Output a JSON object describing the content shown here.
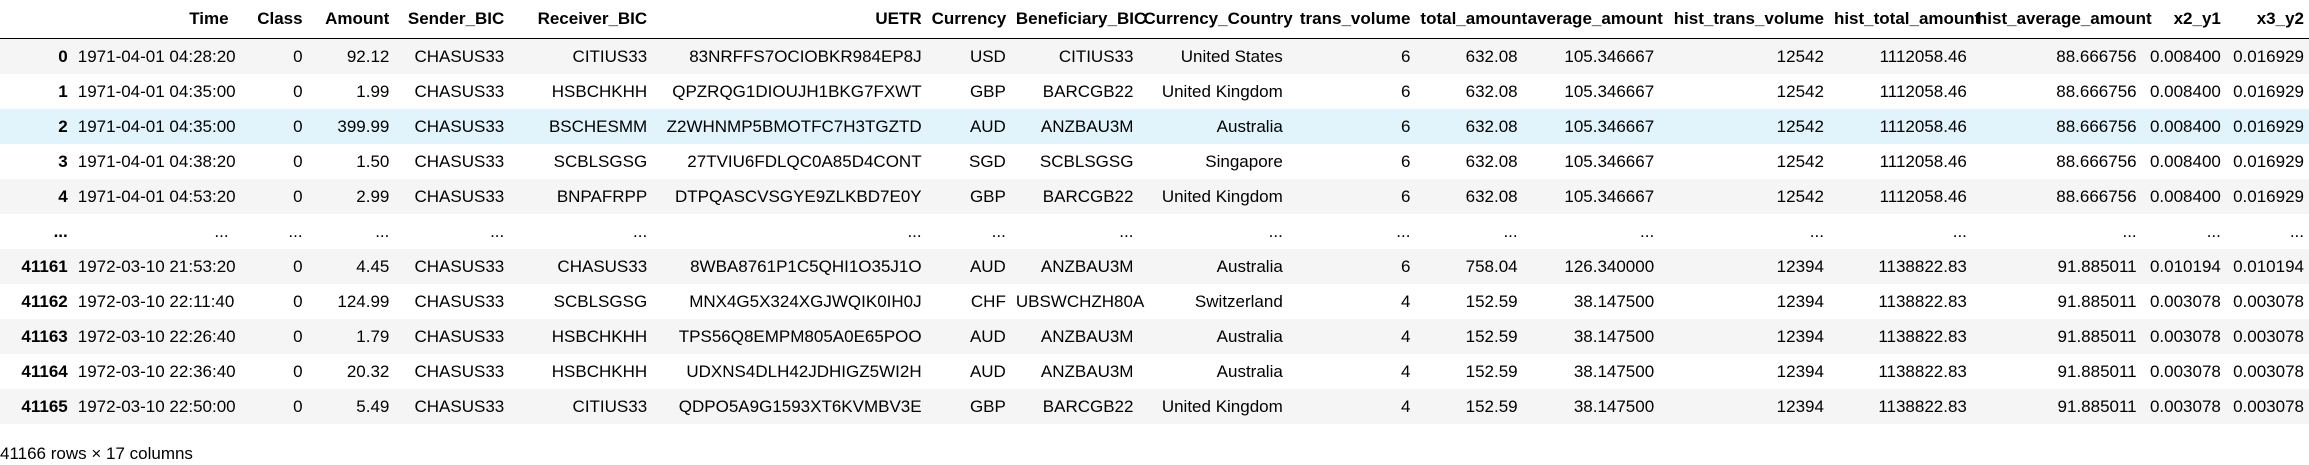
{
  "table": {
    "index_header": "",
    "columns": [
      "Time",
      "Class",
      "Amount",
      "Sender_BIC",
      "Receiver_BIC",
      "UETR",
      "Currency",
      "Beneficiary_BIC",
      "Currency_Country",
      "trans_volume",
      "total_amount",
      "average_amount",
      "hist_trans_volume",
      "hist_total_amount",
      "hist_average_amount",
      "x2_y1",
      "x3_y2"
    ],
    "rows": [
      {
        "index": "0",
        "cells": [
          "1971-04-01 04:28:20",
          "0",
          "92.12",
          "CHASUS33",
          "CITIUS33",
          "83NRFFS7OCIOBKR984EP8J",
          "USD",
          "CITIUS33",
          "United States",
          "6",
          "632.08",
          "105.346667",
          "12542",
          "1112058.46",
          "88.666756",
          "0.008400",
          "0.016929"
        ]
      },
      {
        "index": "1",
        "cells": [
          "1971-04-01 04:35:00",
          "0",
          "1.99",
          "CHASUS33",
          "HSBCHKHH",
          "QPZRQG1DIOUJH1BKG7FXWT",
          "GBP",
          "BARCGB22",
          "United Kingdom",
          "6",
          "632.08",
          "105.346667",
          "12542",
          "1112058.46",
          "88.666756",
          "0.008400",
          "0.016929"
        ]
      },
      {
        "index": "2",
        "cells": [
          "1971-04-01 04:35:00",
          "0",
          "399.99",
          "CHASUS33",
          "BSCHESMM",
          "Z2WHNMP5BMOTFC7H3TGZTD",
          "AUD",
          "ANZBAU3M",
          "Australia",
          "6",
          "632.08",
          "105.346667",
          "12542",
          "1112058.46",
          "88.666756",
          "0.008400",
          "0.016929"
        ]
      },
      {
        "index": "3",
        "cells": [
          "1971-04-01 04:38:20",
          "0",
          "1.50",
          "CHASUS33",
          "SCBLSGSG",
          "27TVIU6FDLQC0A85D4CONT",
          "SGD",
          "SCBLSGSG",
          "Singapore",
          "6",
          "632.08",
          "105.346667",
          "12542",
          "1112058.46",
          "88.666756",
          "0.008400",
          "0.016929"
        ]
      },
      {
        "index": "4",
        "cells": [
          "1971-04-01 04:53:20",
          "0",
          "2.99",
          "CHASUS33",
          "BNPAFRPP",
          "DTPQASCVSGYE9ZLKBD7E0Y",
          "GBP",
          "BARCGB22",
          "United Kingdom",
          "6",
          "632.08",
          "105.346667",
          "12542",
          "1112058.46",
          "88.666756",
          "0.008400",
          "0.016929"
        ]
      },
      {
        "index": "...",
        "cells": [
          "...",
          "...",
          "...",
          "...",
          "...",
          "...",
          "...",
          "...",
          "...",
          "...",
          "...",
          "...",
          "...",
          "...",
          "...",
          "...",
          "..."
        ]
      },
      {
        "index": "41161",
        "cells": [
          "1972-03-10 21:53:20",
          "0",
          "4.45",
          "CHASUS33",
          "CHASUS33",
          "8WBA8761P1C5QHI1O35J1O",
          "AUD",
          "ANZBAU3M",
          "Australia",
          "6",
          "758.04",
          "126.340000",
          "12394",
          "1138822.83",
          "91.885011",
          "0.010194",
          "0.010194"
        ]
      },
      {
        "index": "41162",
        "cells": [
          "1972-03-10 22:11:40",
          "0",
          "124.99",
          "CHASUS33",
          "SCBLSGSG",
          "MNX4G5X324XGJWQIK0IH0J",
          "CHF",
          "UBSWCHZH80A",
          "Switzerland",
          "4",
          "152.59",
          "38.147500",
          "12394",
          "1138822.83",
          "91.885011",
          "0.003078",
          "0.003078"
        ]
      },
      {
        "index": "41163",
        "cells": [
          "1972-03-10 22:26:40",
          "0",
          "1.79",
          "CHASUS33",
          "HSBCHKHH",
          "TPS56Q8EMPM805A0E65POO",
          "AUD",
          "ANZBAU3M",
          "Australia",
          "4",
          "152.59",
          "38.147500",
          "12394",
          "1138822.83",
          "91.885011",
          "0.003078",
          "0.003078"
        ]
      },
      {
        "index": "41164",
        "cells": [
          "1972-03-10 22:36:40",
          "0",
          "20.32",
          "CHASUS33",
          "HSBCHKHH",
          "UDXNS4DLH42JDHIGZ5WI2H",
          "AUD",
          "ANZBAU3M",
          "Australia",
          "4",
          "152.59",
          "38.147500",
          "12394",
          "1138822.83",
          "91.885011",
          "0.003078",
          "0.003078"
        ]
      },
      {
        "index": "41165",
        "cells": [
          "1972-03-10 22:50:00",
          "0",
          "5.49",
          "CHASUS33",
          "CITIUS33",
          "QDPO5A9G1593XT6KVMBV3E",
          "GBP",
          "BARCGB22",
          "United Kingdom",
          "4",
          "152.59",
          "38.147500",
          "12394",
          "1138822.83",
          "91.885011",
          "0.003078",
          "0.003078"
        ]
      }
    ],
    "highlighted_row_index": "2",
    "footer": "41166 rows × 17 columns"
  }
}
